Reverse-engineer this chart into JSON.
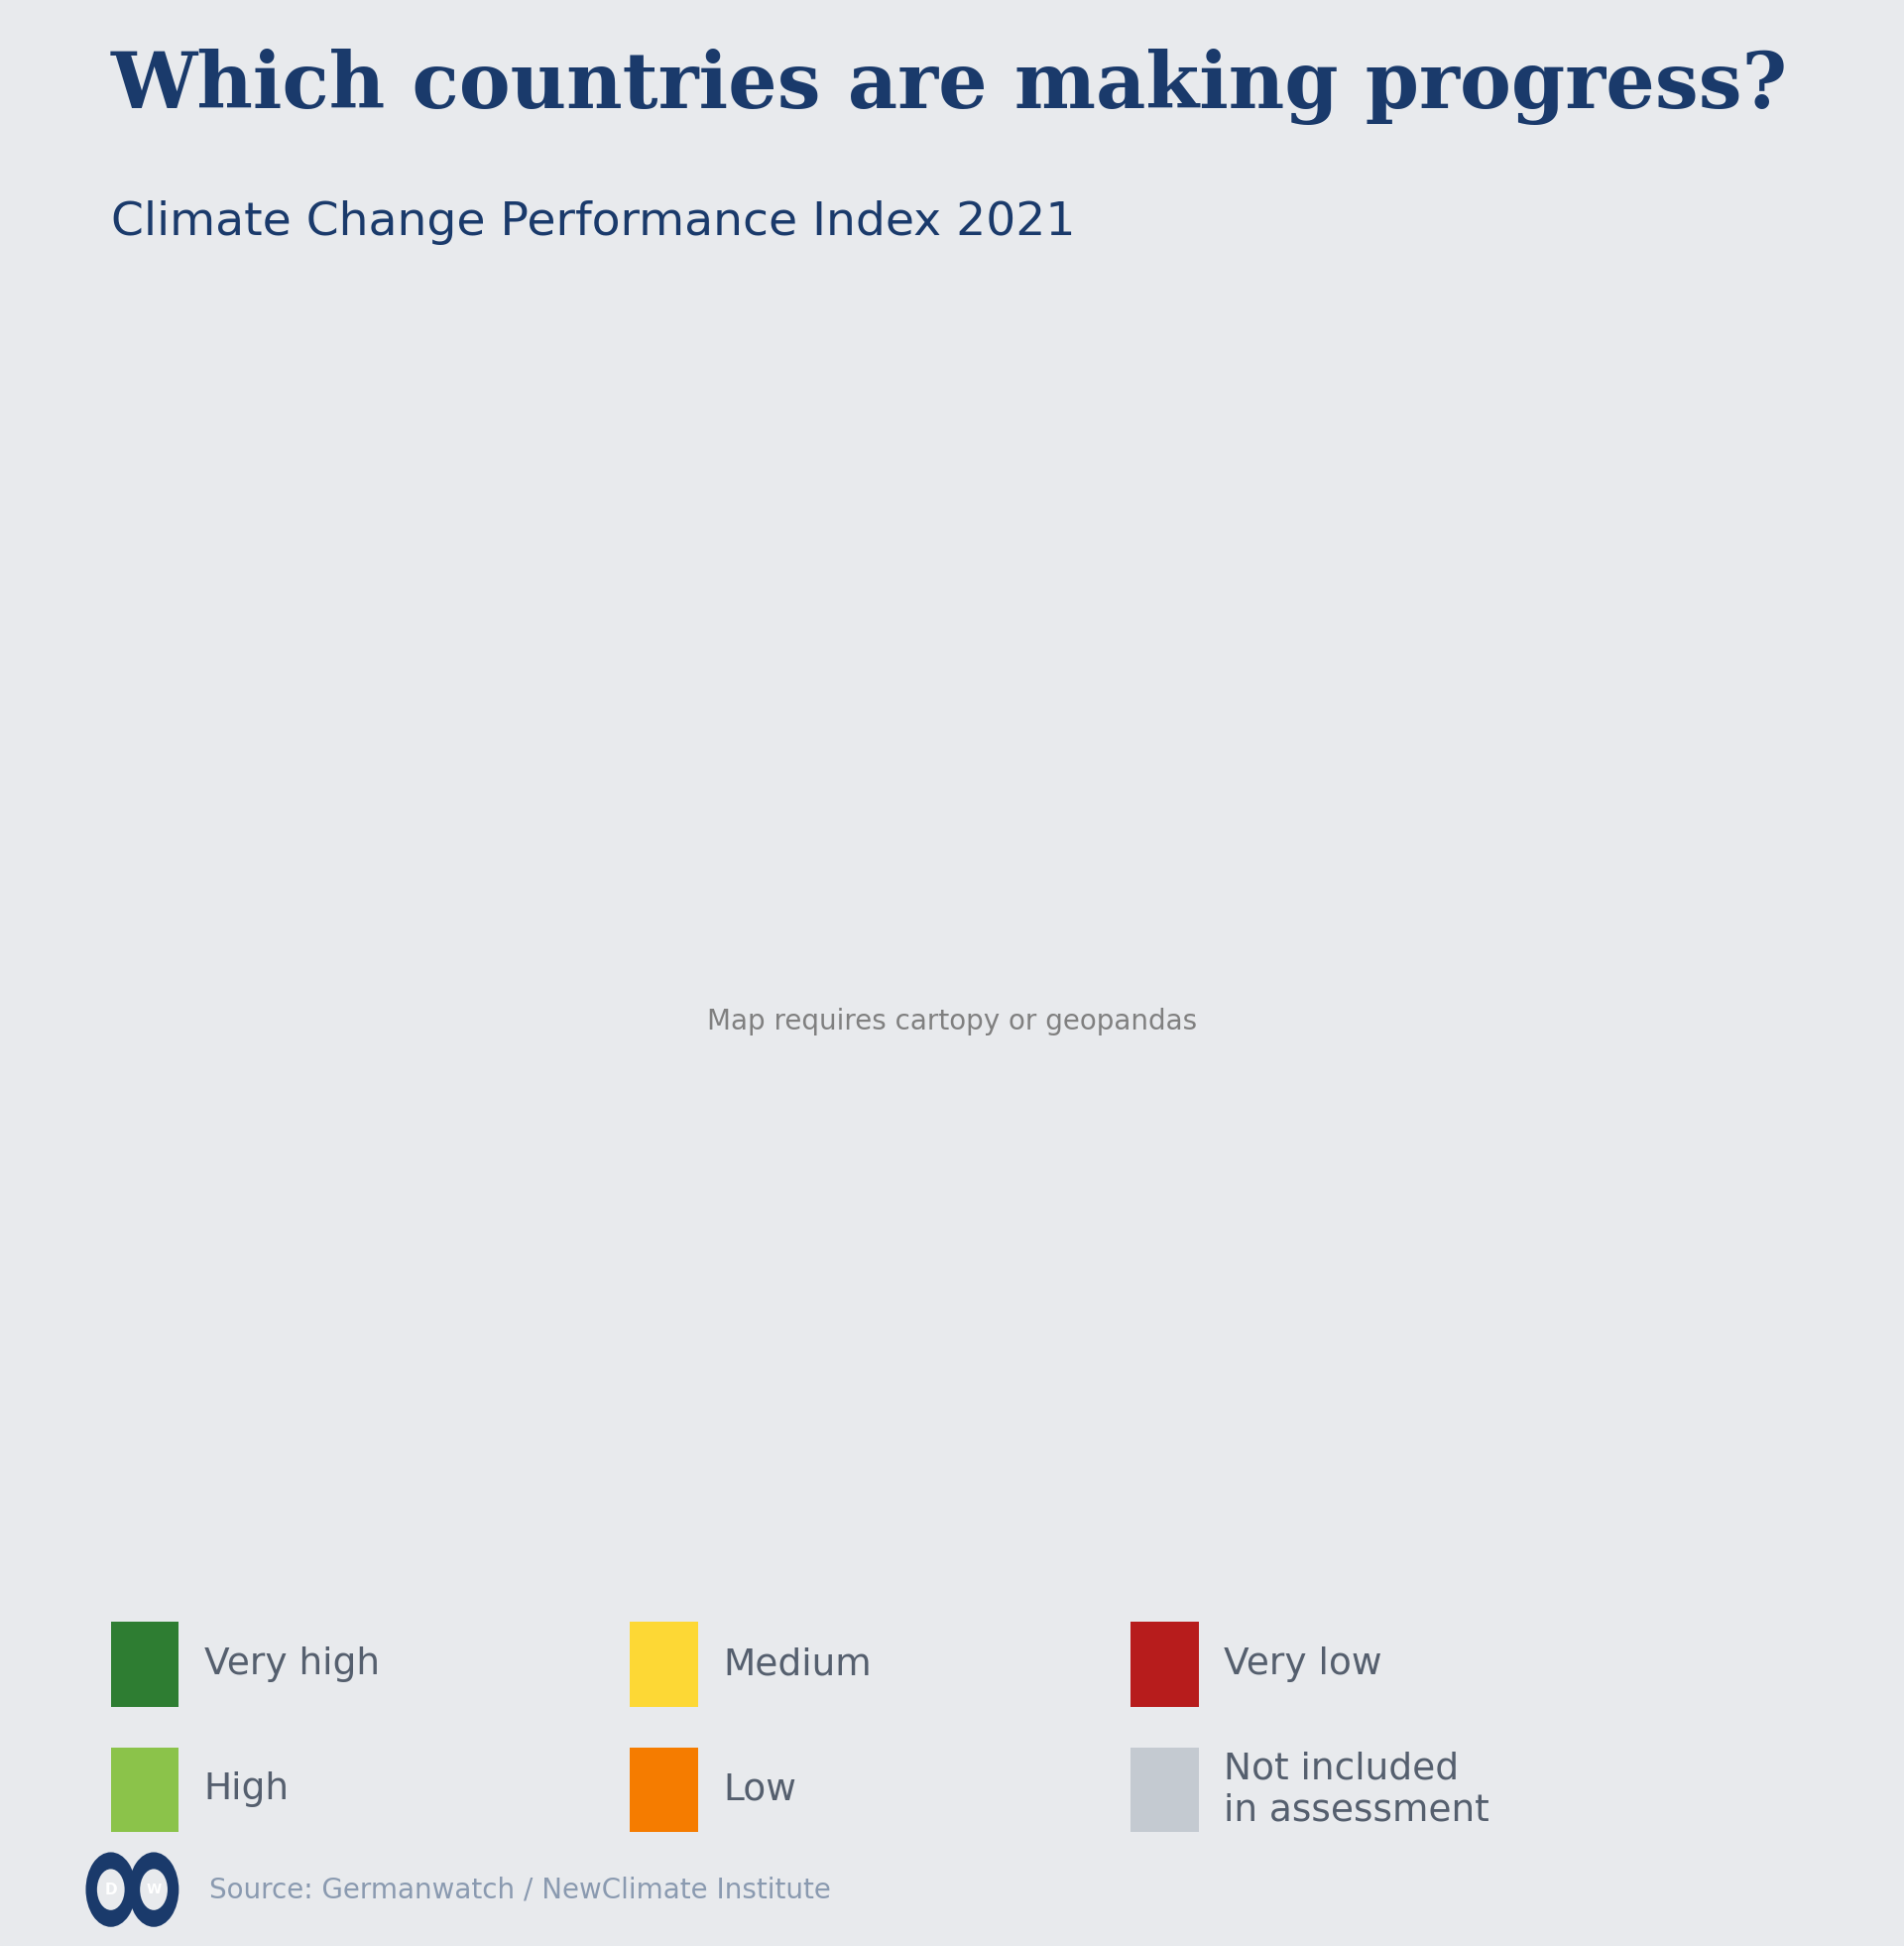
{
  "title": "Which countries are making progress?",
  "subtitle": "Climate Change Performance Index 2021",
  "source": "Source: Germanwatch / NewClimate Institute",
  "background_color": "#e8eaed",
  "title_color": "#1a3a6b",
  "subtitle_color": "#1a3a6b",
  "source_color": "#8a9ab0",
  "legend_text_color": "#555f6e",
  "map_ocean_color": "#e8eaed",
  "map_border_color": "#ffffff",
  "categories": {
    "very_high": {
      "color": "#2e7d32",
      "label": "Very high"
    },
    "high": {
      "color": "#8bc34a",
      "label": "High"
    },
    "medium": {
      "color": "#fdd835",
      "label": "Medium"
    },
    "low": {
      "color": "#f57c00",
      "label": "Low"
    },
    "very_low": {
      "color": "#b71c1c",
      "label": "Very low"
    },
    "not_included": {
      "color": "#c4cad1",
      "label": "Not included\nin assessment"
    }
  },
  "specific_country_colors": {
    "Sweden": "#2e7d32",
    "Denmark": "#2e7d32",
    "Norway": "#8bc34a",
    "United Kingdom": "#8bc34a",
    "Morocco": "#8bc34a",
    "India": "#8bc34a",
    "Chile": "#8bc34a",
    "Portugal": "#8bc34a",
    "Lithuania": "#8bc34a",
    "Latvia": "#8bc34a",
    "Estonia": "#8bc34a",
    "Netherlands": "#8bc34a",
    "Switzerland": "#8bc34a",
    "Brazil": "#fdd835",
    "Argentina": "#fdd835",
    "Colombia": "#fdd835",
    "Bolivia": "#fdd835",
    "Nigeria": "#fdd835",
    "South Africa": "#fdd835",
    "Tunisia": "#fdd835",
    "Ukraine": "#fdd835",
    "Hungary": "#fdd835",
    "Romania": "#fdd835",
    "Bulgaria": "#fdd835",
    "Croatia": "#fdd835",
    "Serbia": "#fdd835",
    "North Macedonia": "#fdd835",
    "Albania": "#fdd835",
    "Bosnia and Herz.": "#fdd835",
    "Moldova": "#fdd835",
    "Mexico": "#fdd835",
    "Costa Rica": "#fdd835",
    "Panama": "#fdd835",
    "Philippines": "#fdd835",
    "Indonesia": "#fdd835",
    "Malaysia": "#fdd835",
    "Thailand": "#fdd835",
    "Vietnam": "#fdd835",
    "New Zealand": "#fdd835",
    "Egypt": "#f57c00",
    "Algeria": "#f57c00",
    "Libya": "#f57c00",
    "Sudan": "#f57c00",
    "Ethiopia": "#f57c00",
    "Kenya": "#f57c00",
    "Tanzania": "#f57c00",
    "Zambia": "#f57c00",
    "Mozambique": "#f57c00",
    "Ghana": "#f57c00",
    "Ivory Coast": "#f57c00",
    "Cameroon": "#f57c00",
    "Angola": "#f57c00",
    "Dem. Rep. Congo": "#f57c00",
    "Madagascar": "#f57c00",
    "Bangladesh": "#f57c00",
    "Sri Lanka": "#f57c00",
    "Myanmar": "#f57c00",
    "Cambodia": "#f57c00",
    "Pakistan": "#f57c00",
    "Singapore": "#f57c00",
    "Brunei": "#f57c00",
    "Mongolia": "#f57c00",
    "Kazakhstan": "#f57c00",
    "Uzbekistan": "#f57c00",
    "Turkmenistan": "#f57c00",
    "Azerbaijan": "#f57c00",
    "Georgia": "#f57c00",
    "Armenia": "#f57c00",
    "Belarus": "#f57c00",
    "Slovenia": "#f57c00",
    "Iceland": "#f57c00",
    "China": "#f57c00",
    "Iraq": "#f57c00",
    "Somalia": "#f57c00",
    "North Korea": "#f57c00",
    "Taiwan": "#f57c00",
    "United States of America": "#b71c1c",
    "Canada": "#b71c1c",
    "Australia": "#b71c1c",
    "Russia": "#b71c1c",
    "Japan": "#b71c1c",
    "South Korea": "#b71c1c",
    "Iran": "#b71c1c",
    "Saudi Arabia": "#b71c1c",
    "United Arab Emirates": "#b71c1c",
    "Kuwait": "#b71c1c",
    "Qatar": "#b71c1c",
    "Turkey": "#b71c1c",
    "Poland": "#b71c1c",
    "Czech Republic": "#b71c1c",
    "Czechia": "#b71c1c",
    "Greece": "#b71c1c",
    "Austria": "#b71c1c",
    "Belgium": "#b71c1c",
    "Germany": "#b71c1c",
    "Spain": "#b71c1c",
    "France": "#b71c1c",
    "Italy": "#b71c1c",
    "Finland": "#b71c1c",
    "Ireland": "#b71c1c",
    "Luxembourg": "#b71c1c",
    "Slovakia": "#b71c1c"
  }
}
